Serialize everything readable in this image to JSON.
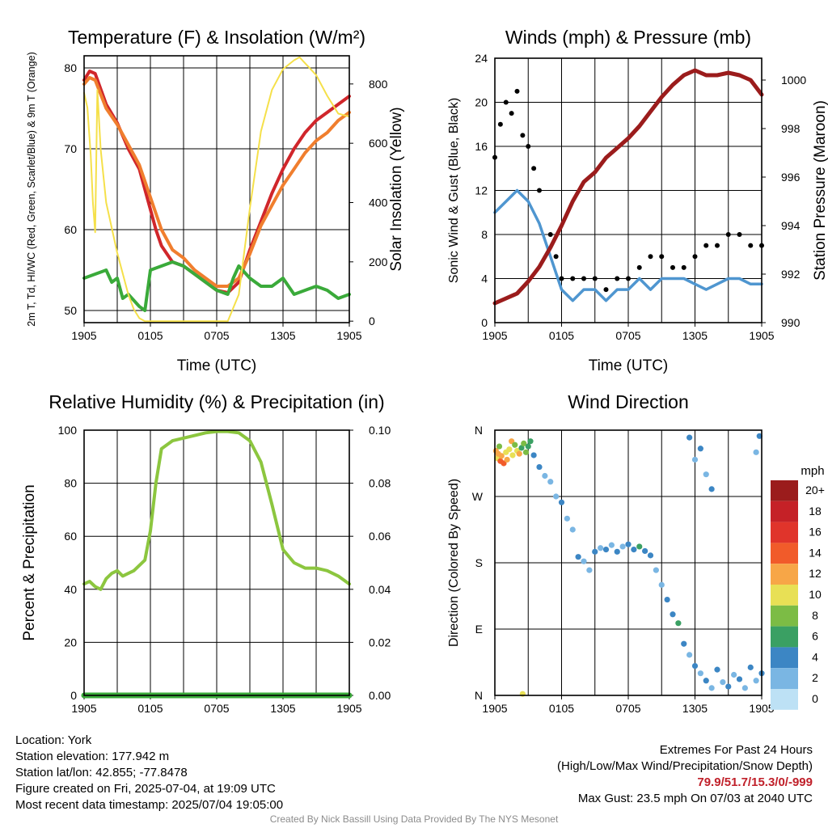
{
  "chart_data": [
    {
      "type": "line",
      "title": "Temperature (F) & Insolation (W/m²)",
      "xlabel": "Time (UTC)",
      "ylabel": "2m T, Td, HI/WC (Red, Green, Scarlet/Blue) & 9m T (Orange)",
      "y2label": "Solar Insolation (Yellow)",
      "x_tick_labels": [
        "1905",
        "0105",
        "0705",
        "1305",
        "1905"
      ],
      "x_range_hours": [
        0,
        24
      ],
      "ylim": [
        48.5,
        81.5
      ],
      "y_ticks": [
        50,
        60,
        70,
        80
      ],
      "y2lim": [
        -5,
        895
      ],
      "y2_ticks": [
        0,
        200,
        400,
        600,
        800
      ],
      "grid": true,
      "series": [
        {
          "name": "2m T",
          "color": "#d0262b",
          "x": [
            0,
            0.5,
            1,
            2,
            3,
            4,
            5,
            6,
            6.5,
            7,
            8,
            9,
            10,
            11,
            12,
            13,
            14,
            15,
            16,
            17,
            18,
            19,
            20,
            21,
            22,
            23,
            24
          ],
          "values": [
            78.5,
            79.6,
            79.3,
            75.5,
            73.2,
            70,
            67.5,
            62.5,
            60,
            58,
            56,
            55.5,
            54.5,
            53.5,
            52.5,
            52.2,
            53.5,
            57.5,
            61,
            64.5,
            67.5,
            70,
            72,
            73.5,
            74.5,
            75.5,
            76.5
          ]
        },
        {
          "name": "9m T",
          "color": "#f07e2e",
          "x": [
            0,
            0.5,
            1,
            2,
            3,
            4,
            5,
            6,
            6.5,
            7,
            8,
            9,
            10,
            11,
            12,
            13,
            14,
            15,
            16,
            17,
            18,
            19,
            20,
            21,
            22,
            23,
            24
          ],
          "values": [
            78,
            78.8,
            78.5,
            75,
            73,
            70.5,
            68,
            64,
            62,
            60,
            57.5,
            56.5,
            55,
            54,
            53,
            53,
            54,
            57,
            60.5,
            63,
            65.5,
            67.5,
            69.5,
            71,
            72,
            73.5,
            74.5
          ]
        },
        {
          "name": "Td",
          "color": "#3aaa3a",
          "x": [
            0,
            1,
            2,
            2.5,
            3,
            3.5,
            4,
            5,
            5.5,
            6,
            7,
            8,
            9,
            10,
            11,
            12,
            13,
            13.5,
            14,
            15,
            16,
            17,
            18,
            19,
            20,
            21,
            22,
            23,
            24
          ],
          "values": [
            54,
            54.5,
            55,
            53.5,
            54,
            51.5,
            52,
            50.5,
            50,
            55,
            55.5,
            56,
            55.5,
            54.5,
            53.5,
            52.5,
            52,
            54,
            55.5,
            54,
            53,
            53,
            54,
            52,
            52.5,
            53,
            52.5,
            51.5,
            52
          ]
        },
        {
          "name": "Solar Insolation",
          "color": "#f5e04a",
          "axis": "y2",
          "x": [
            0,
            0.3,
            0.6,
            0.8,
            1,
            1.2,
            1.5,
            2,
            3,
            4,
            4.5,
            5,
            5.5,
            6,
            9,
            12,
            13,
            14,
            15,
            16,
            17,
            18,
            19,
            19.5,
            20,
            21,
            22,
            23,
            24
          ],
          "values": [
            770,
            720,
            560,
            400,
            300,
            780,
            580,
            400,
            230,
            90,
            40,
            10,
            0,
            0,
            0,
            0,
            0,
            90,
            380,
            640,
            780,
            850,
            880,
            890,
            870,
            830,
            760,
            700,
            690
          ]
        }
      ]
    },
    {
      "type": "line",
      "title": "Winds (mph) & Pressure (mb)",
      "xlabel": "Time (UTC)",
      "ylabel": "Sonic Wind & Gust (Blue, Black)",
      "y2label": "Station Pressure (Maroon)",
      "x_tick_labels": [
        "1905",
        "0105",
        "0705",
        "1305",
        "1905"
      ],
      "x_range_hours": [
        0,
        24
      ],
      "ylim": [
        0,
        24
      ],
      "y_ticks": [
        0,
        4,
        8,
        12,
        16,
        20,
        24
      ],
      "y2lim": [
        990,
        1000.9
      ],
      "y2_ticks": [
        990,
        992,
        994,
        996,
        998,
        1000
      ],
      "grid": true,
      "series": [
        {
          "name": "Sonic Wind",
          "color": "#4f96d0",
          "x": [
            0,
            1,
            2,
            3,
            4,
            5,
            6,
            7,
            8,
            9,
            10,
            11,
            12,
            13,
            14,
            15,
            16,
            17,
            18,
            19,
            20,
            21,
            22,
            23,
            24
          ],
          "values": [
            10,
            11,
            12,
            11,
            9,
            6,
            3,
            2,
            3,
            3,
            2,
            3,
            3,
            4,
            3,
            4,
            4,
            4,
            3.5,
            3,
            3.5,
            4,
            4,
            3.5,
            3.5
          ]
        },
        {
          "name": "Gust",
          "color": "#000000",
          "x": [
            0,
            0.5,
            1,
            1.5,
            2,
            2.5,
            3,
            3.5,
            4,
            5,
            5.5,
            6,
            7,
            8,
            9,
            10,
            11,
            12,
            13,
            14,
            15,
            16,
            17,
            18,
            19,
            20,
            21,
            22,
            23,
            24
          ],
          "values": [
            15,
            18,
            20,
            19,
            21,
            17,
            16,
            14,
            12,
            8,
            6,
            4,
            4,
            4,
            4,
            3,
            4,
            4,
            5,
            6,
            6,
            5,
            5,
            6,
            7,
            7,
            8,
            8,
            7,
            7
          ]
        },
        {
          "name": "Station Pressure",
          "color": "#9b1c1c",
          "axis": "y2",
          "x": [
            0,
            1,
            2,
            3,
            4,
            5,
            6,
            7,
            8,
            9,
            10,
            11,
            12,
            13,
            14,
            15,
            16,
            17,
            18,
            19,
            20,
            21,
            22,
            23,
            24
          ],
          "values": [
            990.8,
            991,
            991.2,
            991.7,
            992.3,
            993.1,
            994,
            995,
            995.8,
            996.2,
            996.8,
            997.2,
            997.6,
            998.1,
            998.7,
            999.3,
            999.8,
            1000.2,
            1000.4,
            1000.2,
            1000.2,
            1000.3,
            1000.2,
            1000.0,
            999.4
          ]
        }
      ]
    },
    {
      "type": "line",
      "title": "Relative Humidity (%) & Precipitation (in)",
      "xlabel": "",
      "ylabel": "Percent & Precipitation",
      "x_tick_labels": [
        "1905",
        "0105",
        "0705",
        "1305",
        "1905"
      ],
      "x_range_hours": [
        0,
        24
      ],
      "ylim": [
        0,
        100
      ],
      "y_ticks": [
        0,
        20,
        40,
        60,
        80,
        100
      ],
      "y2lim": [
        0,
        0.1
      ],
      "y2_ticks": [
        "0.00",
        "0.02",
        "0.04",
        "0.06",
        "0.08",
        "0.10"
      ],
      "grid": true,
      "series": [
        {
          "name": "Relative Humidity",
          "color": "#8cc63f",
          "x": [
            0,
            0.5,
            1,
            1.5,
            2,
            2.5,
            3,
            3.5,
            4,
            4.5,
            5,
            5.5,
            6,
            6.5,
            7,
            8,
            9,
            10,
            11,
            12,
            13,
            14,
            15,
            16,
            17,
            18,
            19,
            20,
            21,
            22,
            23,
            24
          ],
          "values": [
            42,
            43,
            41,
            40,
            44,
            46,
            47,
            45,
            46,
            47,
            49,
            51,
            62,
            80,
            93,
            96,
            97,
            98,
            99,
            99.5,
            99.5,
            99,
            96,
            88,
            72,
            55,
            50,
            48,
            48,
            47,
            45,
            42
          ]
        },
        {
          "name": "Precipitation",
          "color": "#3aaa3a",
          "x": [
            0,
            24
          ],
          "values": [
            0,
            0
          ]
        }
      ]
    },
    {
      "type": "scatter",
      "title": "Wind Direction",
      "xlabel": "",
      "ylabel": "Direction (Colored By Speed)",
      "x_tick_labels": [
        "1905",
        "0105",
        "0705",
        "1305",
        "1905"
      ],
      "x_range_hours": [
        0,
        24
      ],
      "ylim": [
        0,
        360
      ],
      "y_tick_labels": [
        "N",
        "E",
        "S",
        "W",
        "N"
      ],
      "grid": true,
      "colorbar": {
        "title": "mph",
        "labels": [
          "20+",
          "18",
          "16",
          "14",
          "12",
          "10",
          "8",
          "6",
          "4",
          "2",
          "0"
        ],
        "colors": [
          "#9b1c1c",
          "#c52127",
          "#e0342b",
          "#f15b2a",
          "#f7a647",
          "#e8e055",
          "#7cbc45",
          "#3aa063",
          "#3c86c4",
          "#7ab6e3",
          "#bde1f5"
        ]
      },
      "points": [
        {
          "x": 0.1,
          "dir": 332,
          "speed": 12
        },
        {
          "x": 0.2,
          "dir": 322,
          "speed": 10
        },
        {
          "x": 0.3,
          "dir": 328,
          "speed": 11
        },
        {
          "x": 0.4,
          "dir": 338,
          "speed": 8
        },
        {
          "x": 0.5,
          "dir": 318,
          "speed": 13
        },
        {
          "x": 0.6,
          "dir": 325,
          "speed": 12
        },
        {
          "x": 0.8,
          "dir": 315,
          "speed": 14
        },
        {
          "x": 1.0,
          "dir": 330,
          "speed": 10
        },
        {
          "x": 1.1,
          "dir": 320,
          "speed": 12
        },
        {
          "x": 1.3,
          "dir": 334,
          "speed": 9
        },
        {
          "x": 1.5,
          "dir": 345,
          "speed": 11
        },
        {
          "x": 1.6,
          "dir": 326,
          "speed": 10
        },
        {
          "x": 1.8,
          "dir": 340,
          "speed": 7
        },
        {
          "x": 2.0,
          "dir": 332,
          "speed": 9
        },
        {
          "x": 2.2,
          "dir": 328,
          "speed": 12
        },
        {
          "x": 2.4,
          "dir": 336,
          "speed": 6
        },
        {
          "x": 2.6,
          "dir": 342,
          "speed": 8
        },
        {
          "x": 2.8,
          "dir": 330,
          "speed": 7
        },
        {
          "x": 3.0,
          "dir": 338,
          "speed": 6
        },
        {
          "x": 3.2,
          "dir": 345,
          "speed": 5
        },
        {
          "x": 3.5,
          "dir": 326,
          "speed": 4
        },
        {
          "x": 4.0,
          "dir": 310,
          "speed": 3
        },
        {
          "x": 4.5,
          "dir": 298,
          "speed": 2
        },
        {
          "x": 5.0,
          "dir": 290,
          "speed": 2
        },
        {
          "x": 5.5,
          "dir": 270,
          "speed": 2
        },
        {
          "x": 6.0,
          "dir": 262,
          "speed": 3
        },
        {
          "x": 6.5,
          "dir": 240,
          "speed": 2
        },
        {
          "x": 7.0,
          "dir": 225,
          "speed": 1
        },
        {
          "x": 7.5,
          "dir": 188,
          "speed": 3
        },
        {
          "x": 8.0,
          "dir": 182,
          "speed": 2
        },
        {
          "x": 8.5,
          "dir": 170,
          "speed": 1
        },
        {
          "x": 9.0,
          "dir": 195,
          "speed": 3
        },
        {
          "x": 9.5,
          "dir": 200,
          "speed": 2
        },
        {
          "x": 10.0,
          "dir": 198,
          "speed": 3
        },
        {
          "x": 10.5,
          "dir": 204,
          "speed": 2
        },
        {
          "x": 11.0,
          "dir": 195,
          "speed": 3
        },
        {
          "x": 11.5,
          "dir": 202,
          "speed": 2
        },
        {
          "x": 12.0,
          "dir": 205,
          "speed": 3
        },
        {
          "x": 12.5,
          "dir": 198,
          "speed": 4
        },
        {
          "x": 13.0,
          "dir": 202,
          "speed": 5
        },
        {
          "x": 13.5,
          "dir": 196,
          "speed": 4
        },
        {
          "x": 14.0,
          "dir": 190,
          "speed": 3
        },
        {
          "x": 14.5,
          "dir": 170,
          "speed": 2
        },
        {
          "x": 15.0,
          "dir": 150,
          "speed": 2
        },
        {
          "x": 15.5,
          "dir": 130,
          "speed": 3
        },
        {
          "x": 16.0,
          "dir": 110,
          "speed": 4
        },
        {
          "x": 16.5,
          "dir": 98,
          "speed": 6
        },
        {
          "x": 17.0,
          "dir": 70,
          "speed": 3
        },
        {
          "x": 17.5,
          "dir": 55,
          "speed": 2
        },
        {
          "x": 18.0,
          "dir": 40,
          "speed": 4
        },
        {
          "x": 18.5,
          "dir": 30,
          "speed": 2
        },
        {
          "x": 19.0,
          "dir": 20,
          "speed": 3
        },
        {
          "x": 19.5,
          "dir": 10,
          "speed": 2
        },
        {
          "x": 20.0,
          "dir": 35,
          "speed": 3
        },
        {
          "x": 20.5,
          "dir": 18,
          "speed": 2
        },
        {
          "x": 21.0,
          "dir": 12,
          "speed": 3
        },
        {
          "x": 21.5,
          "dir": 28,
          "speed": 2
        },
        {
          "x": 22.0,
          "dir": 22,
          "speed": 3
        },
        {
          "x": 22.5,
          "dir": 10,
          "speed": 2
        },
        {
          "x": 23.0,
          "dir": 38,
          "speed": 3
        },
        {
          "x": 23.5,
          "dir": 20,
          "speed": 2
        },
        {
          "x": 24.0,
          "dir": 30,
          "speed": 4
        },
        {
          "x": 17.5,
          "dir": 350,
          "speed": 3
        },
        {
          "x": 18.0,
          "dir": 320,
          "speed": 2
        },
        {
          "x": 18.5,
          "dir": 335,
          "speed": 3
        },
        {
          "x": 19.0,
          "dir": 300,
          "speed": 2
        },
        {
          "x": 19.5,
          "dir": 280,
          "speed": 3
        },
        {
          "x": 23.5,
          "dir": 330,
          "speed": 2
        },
        {
          "x": 23.8,
          "dir": 352,
          "speed": 4
        },
        {
          "x": 2.5,
          "dir": 2,
          "speed": 10
        }
      ]
    }
  ],
  "footer": {
    "location": "Location: York",
    "elevation": "Station elevation: 177.942 m",
    "latlon": "Station lat/lon: 42.855; -77.8478",
    "created": "Figure created on Fri, 2025-07-04, at 19:09 UTC",
    "recent": "Most recent data timestamp: 2025/07/04 19:05:00",
    "extremes_title": "Extremes For Past 24 Hours",
    "extremes_legend": "(High/Low/Max Wind/Precipitation/Snow Depth)",
    "extremes_values": "79.9/51.7/15.3/0/-999",
    "extremes_color": "#c0202a",
    "max_gust": "Max Gust: 23.5 mph On 07/03 at 2040 UTC",
    "credit": "Created By Nick Bassill Using Data Provided By The NYS Mesonet"
  }
}
